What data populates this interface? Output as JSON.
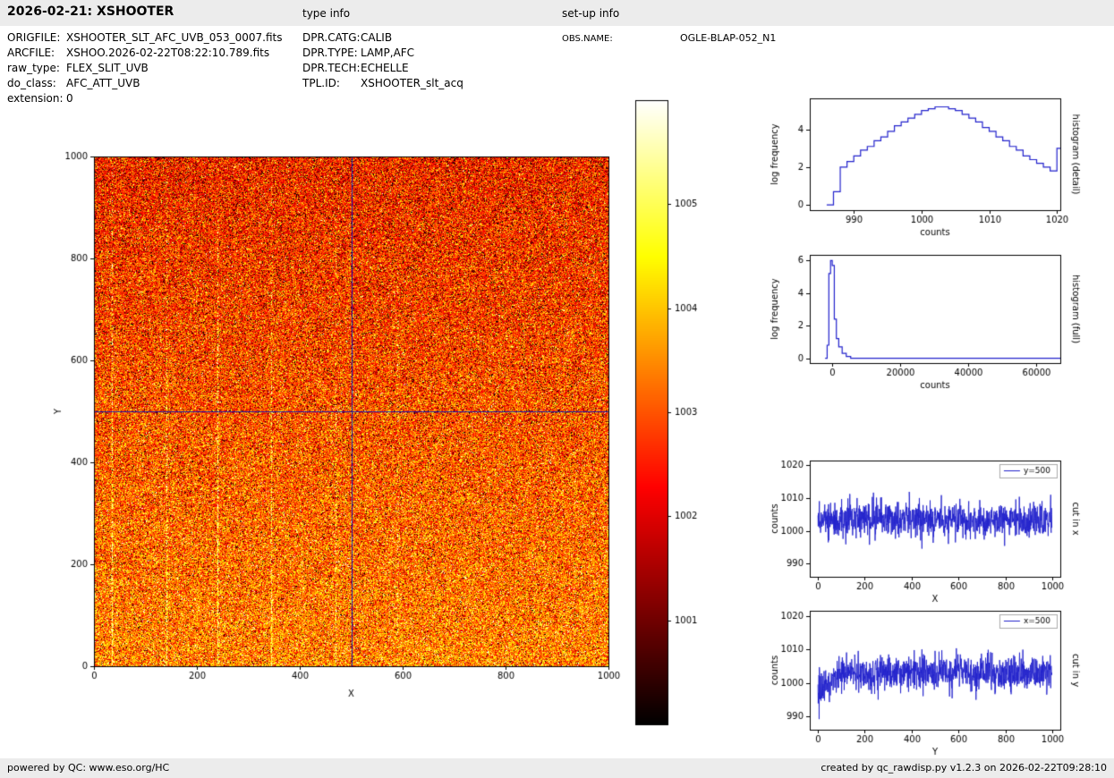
{
  "header": {
    "title": "2026-02-21: XSHOOTER",
    "type_info": "type info",
    "setup_info": "set-up info"
  },
  "metadata": {
    "left": [
      {
        "label": "ORIGFILE:",
        "value": "XSHOOTER_SLT_AFC_UVB_053_0007.fits"
      },
      {
        "label": "ARCFILE:",
        "value": "XSHOO.2026-02-22T08:22:10.789.fits"
      },
      {
        "label": "raw_type:",
        "value": "FLEX_SLIT_UVB"
      },
      {
        "label": "do_class:",
        "value": "AFC_ATT_UVB"
      },
      {
        "label": "extension:",
        "value": "0"
      }
    ],
    "middle": [
      {
        "label": "DPR.CATG:",
        "value": "CALIB"
      },
      {
        "label": "DPR.TYPE:",
        "value": "LAMP,AFC"
      },
      {
        "label": "DPR.TECH:",
        "value": "ECHELLE"
      },
      {
        "label": "TPL.ID:",
        "value": "XSHOOTER_slt_acq"
      }
    ],
    "right": [
      {
        "label": "OBS.NAME:",
        "value": "OGLE-BLAP-052_N1"
      }
    ]
  },
  "footer": {
    "left": "powered by QC: www.eso.org/HC",
    "right": "created by qc_rawdisp.py v1.2.3 on 2026-02-22T09:28:10"
  },
  "chart_data": [
    {
      "id": "main_image",
      "type": "heatmap",
      "xlabel": "X",
      "ylabel": "Y",
      "xlim": [
        0,
        1000
      ],
      "ylim": [
        0,
        1000
      ],
      "xticks": [
        0,
        200,
        400,
        600,
        800,
        1000
      ],
      "yticks": [
        0,
        200,
        400,
        600,
        800,
        1000
      ],
      "colormap": "hot",
      "vmin": 1000,
      "vmax": 1006,
      "crosshair": {
        "x": 500,
        "y": 500,
        "color": "#1a1aaa"
      },
      "streaks": [
        {
          "x": 35,
          "a": 0.95
        },
        {
          "x": 140,
          "a": 0.85
        },
        {
          "x": 240,
          "a": 0.95
        },
        {
          "x": 345,
          "a": 0.8
        },
        {
          "x": 470,
          "a": 0.55
        },
        {
          "x": 590,
          "a": 0.35
        }
      ],
      "noise": {
        "seed": 12345,
        "base": 1002.5,
        "gradient": 1.0,
        "sigma": 0.8,
        "dark_frac": 0.1,
        "bright_frac": 0.07,
        "hot_pixels": 140
      },
      "xlabel_off": 33,
      "ylabel_x": 25
    },
    {
      "id": "colorbar",
      "type": "colorbar",
      "colormap": "hot",
      "vmin": 1000,
      "vmax": 1006,
      "ticks": [
        1001,
        1002,
        1003,
        1004,
        1005
      ]
    },
    {
      "id": "hist_detail",
      "type": "line",
      "step": true,
      "title": "",
      "xlabel": "counts",
      "ylabel": "log frequency",
      "right_label": "histogram (detail)",
      "color": "#2222cc",
      "xlim": [
        983.5,
        1020.5
      ],
      "ylim": [
        -0.28,
        5.65
      ],
      "xticks": [
        990,
        1000,
        1010,
        1020
      ],
      "yticks": [
        0,
        2,
        4
      ],
      "x": [
        986,
        987,
        988,
        989,
        990,
        991,
        992,
        993,
        994,
        995,
        996,
        997,
        998,
        999,
        1000,
        1001,
        1002,
        1003,
        1004,
        1005,
        1006,
        1007,
        1008,
        1009,
        1010,
        1011,
        1012,
        1013,
        1014,
        1015,
        1016,
        1017,
        1018,
        1019,
        1020
      ],
      "y": [
        0.0,
        0.7,
        2.0,
        2.3,
        2.6,
        2.9,
        3.1,
        3.4,
        3.6,
        3.9,
        4.2,
        4.4,
        4.6,
        4.8,
        5.0,
        5.1,
        5.2,
        5.2,
        5.1,
        5.0,
        4.8,
        4.6,
        4.4,
        4.1,
        3.9,
        3.6,
        3.4,
        3.1,
        2.9,
        2.6,
        2.4,
        2.2,
        2.0,
        1.8,
        3.0
      ]
    },
    {
      "id": "hist_full",
      "type": "line",
      "step": true,
      "title": "",
      "xlabel": "counts",
      "ylabel": "log frequency",
      "right_label": "histogram (full)",
      "color": "#2222cc",
      "xlim": [
        -6500,
        67000
      ],
      "ylim": [
        -0.3,
        6.35
      ],
      "xticks": [
        0,
        20000,
        40000,
        60000
      ],
      "yticks": [
        0,
        2,
        4,
        6
      ],
      "x": [
        -2000,
        -1400,
        -900,
        -400,
        100,
        700,
        1300,
        2000,
        3000,
        4200,
        5500
      ],
      "y": [
        0,
        0.8,
        5.2,
        6.0,
        5.7,
        2.4,
        1.2,
        0.7,
        0.3,
        0.1,
        0
      ]
    },
    {
      "id": "cut_x",
      "type": "line",
      "title": "",
      "xlabel": "X",
      "ylabel": "counts",
      "right_label": "cut in x",
      "legend": "y=500",
      "color": "#2222cc",
      "xlim": [
        -35,
        1035
      ],
      "ylim": [
        986,
        1021.5
      ],
      "xticks": [
        0,
        200,
        400,
        600,
        800,
        1000
      ],
      "yticks": [
        990,
        1000,
        1010,
        1020
      ],
      "series_gen": {
        "n": 1000,
        "mean": 1003.5,
        "sigma": 2.7,
        "seed": 31
      }
    },
    {
      "id": "cut_y",
      "type": "line",
      "title": "",
      "xlabel": "Y",
      "ylabel": "counts",
      "right_label": "cut in y",
      "legend": "x=500",
      "color": "#2222cc",
      "xlim": [
        -35,
        1035
      ],
      "ylim": [
        986,
        1021.5
      ],
      "xticks": [
        0,
        200,
        400,
        600,
        800,
        1000
      ],
      "yticks": [
        990,
        1000,
        1010,
        1020
      ],
      "series_gen": {
        "n": 1000,
        "mean": 1003,
        "sigma": 2.7,
        "seed": 99,
        "ramp": {
          "n": 110,
          "drop": 5
        }
      }
    }
  ]
}
